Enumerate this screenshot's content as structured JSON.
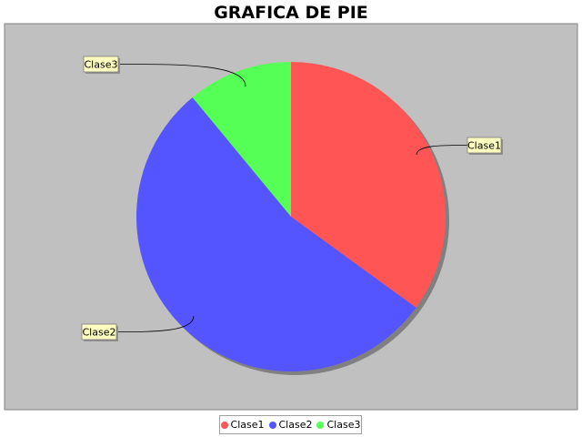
{
  "chart_data": {
    "type": "pie",
    "title": "GRAFICA DE PIE",
    "categories": [
      "Clase1",
      "Clase2",
      "Clase3"
    ],
    "values": [
      35,
      54,
      11
    ],
    "colors": [
      "#ff5555",
      "#5555ff",
      "#55ff55"
    ],
    "legend_position": "bottom",
    "plot_background": "#c0c0c0",
    "label_box_color": "#ffffc0"
  },
  "legend": {
    "items": [
      {
        "label": "Clase1",
        "color": "#ff5555"
      },
      {
        "label": "Clase2",
        "color": "#5555ff"
      },
      {
        "label": "Clase3",
        "color": "#55ff55"
      }
    ]
  }
}
